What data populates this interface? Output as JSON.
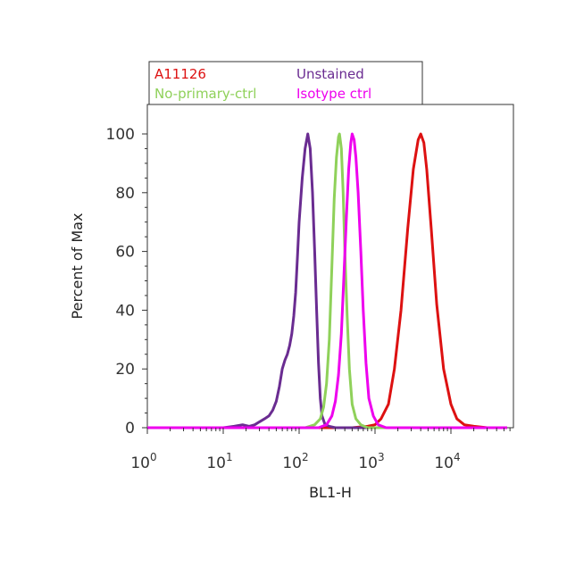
{
  "chart_data": {
    "type": "line",
    "title": "",
    "xlabel": "BL1-H",
    "ylabel": "Percent of Max",
    "x_scale": "log",
    "xlim": [
      1,
      60000
    ],
    "ylim": [
      0,
      110
    ],
    "y_ticks": [
      "0",
      "20",
      "40",
      "60",
      "80",
      "100"
    ],
    "y_tick_values": [
      0,
      20,
      40,
      60,
      80,
      100
    ],
    "x_ticks": [
      {
        "value": 1,
        "base": "10",
        "exp": "0"
      },
      {
        "value": 10,
        "base": "10",
        "exp": "1"
      },
      {
        "value": 100,
        "base": "10",
        "exp": "2"
      },
      {
        "value": 1000,
        "base": "10",
        "exp": "3"
      },
      {
        "value": 10000,
        "base": "10",
        "exp": "4"
      }
    ],
    "legend_position": "top",
    "series": [
      {
        "name": "A11126",
        "color": "#dd1111",
        "x": [
          1,
          500,
          800,
          1000,
          1200,
          1500,
          1800,
          2200,
          2700,
          3200,
          3700,
          4000,
          4400,
          4800,
          5500,
          6500,
          8000,
          10000,
          12000,
          15000,
          20000,
          30000,
          55000
        ],
        "y": [
          0,
          0,
          0.5,
          1,
          3,
          8,
          20,
          40,
          68,
          88,
          98,
          100,
          97,
          88,
          68,
          42,
          20,
          8,
          3,
          1,
          0.5,
          0,
          0
        ]
      },
      {
        "name": "Unstained",
        "color": "#6a2c91",
        "x": [
          1,
          10,
          14,
          18,
          22,
          26,
          30,
          35,
          40,
          45,
          50,
          55,
          60,
          65,
          70,
          75,
          80,
          85,
          90,
          95,
          100,
          110,
          120,
          130,
          140,
          150,
          160,
          170,
          180,
          190,
          200,
          220,
          250,
          300,
          400,
          1000,
          55000
        ],
        "y": [
          0,
          0,
          0.5,
          1,
          0.5,
          1,
          2,
          3,
          4,
          6,
          9,
          14,
          20,
          23,
          25,
          28,
          32,
          38,
          46,
          58,
          70,
          85,
          95,
          100,
          95,
          80,
          60,
          40,
          22,
          10,
          4,
          1,
          0.5,
          0,
          0,
          0,
          0
        ]
      },
      {
        "name": "No-primary-ctrl",
        "color": "#8fd15a",
        "x": [
          1,
          120,
          160,
          190,
          210,
          230,
          250,
          270,
          290,
          310,
          330,
          340,
          360,
          380,
          400,
          430,
          460,
          500,
          560,
          650,
          800,
          55000
        ],
        "y": [
          0,
          0,
          1,
          3,
          7,
          15,
          30,
          55,
          78,
          92,
          99,
          100,
          95,
          80,
          60,
          38,
          20,
          8,
          3,
          1,
          0,
          0
        ]
      },
      {
        "name": "Isotype ctrl",
        "color": "#ee00ee",
        "x": [
          1,
          180,
          230,
          270,
          300,
          330,
          360,
          390,
          420,
          450,
          480,
          500,
          530,
          560,
          600,
          650,
          700,
          760,
          830,
          950,
          1100,
          1400,
          55000
        ],
        "y": [
          0,
          0,
          1,
          4,
          9,
          18,
          32,
          52,
          72,
          88,
          97,
          100,
          98,
          92,
          80,
          60,
          40,
          22,
          10,
          4,
          1,
          0,
          0
        ]
      }
    ]
  },
  "legend": {
    "items": [
      {
        "label": "A11126",
        "color": "#dd1111"
      },
      {
        "label": "Unstained",
        "color": "#6a2c91"
      },
      {
        "label": "No-primary-ctrl",
        "color": "#8fd15a"
      },
      {
        "label": "Isotype ctrl",
        "color": "#ee00ee"
      }
    ]
  }
}
